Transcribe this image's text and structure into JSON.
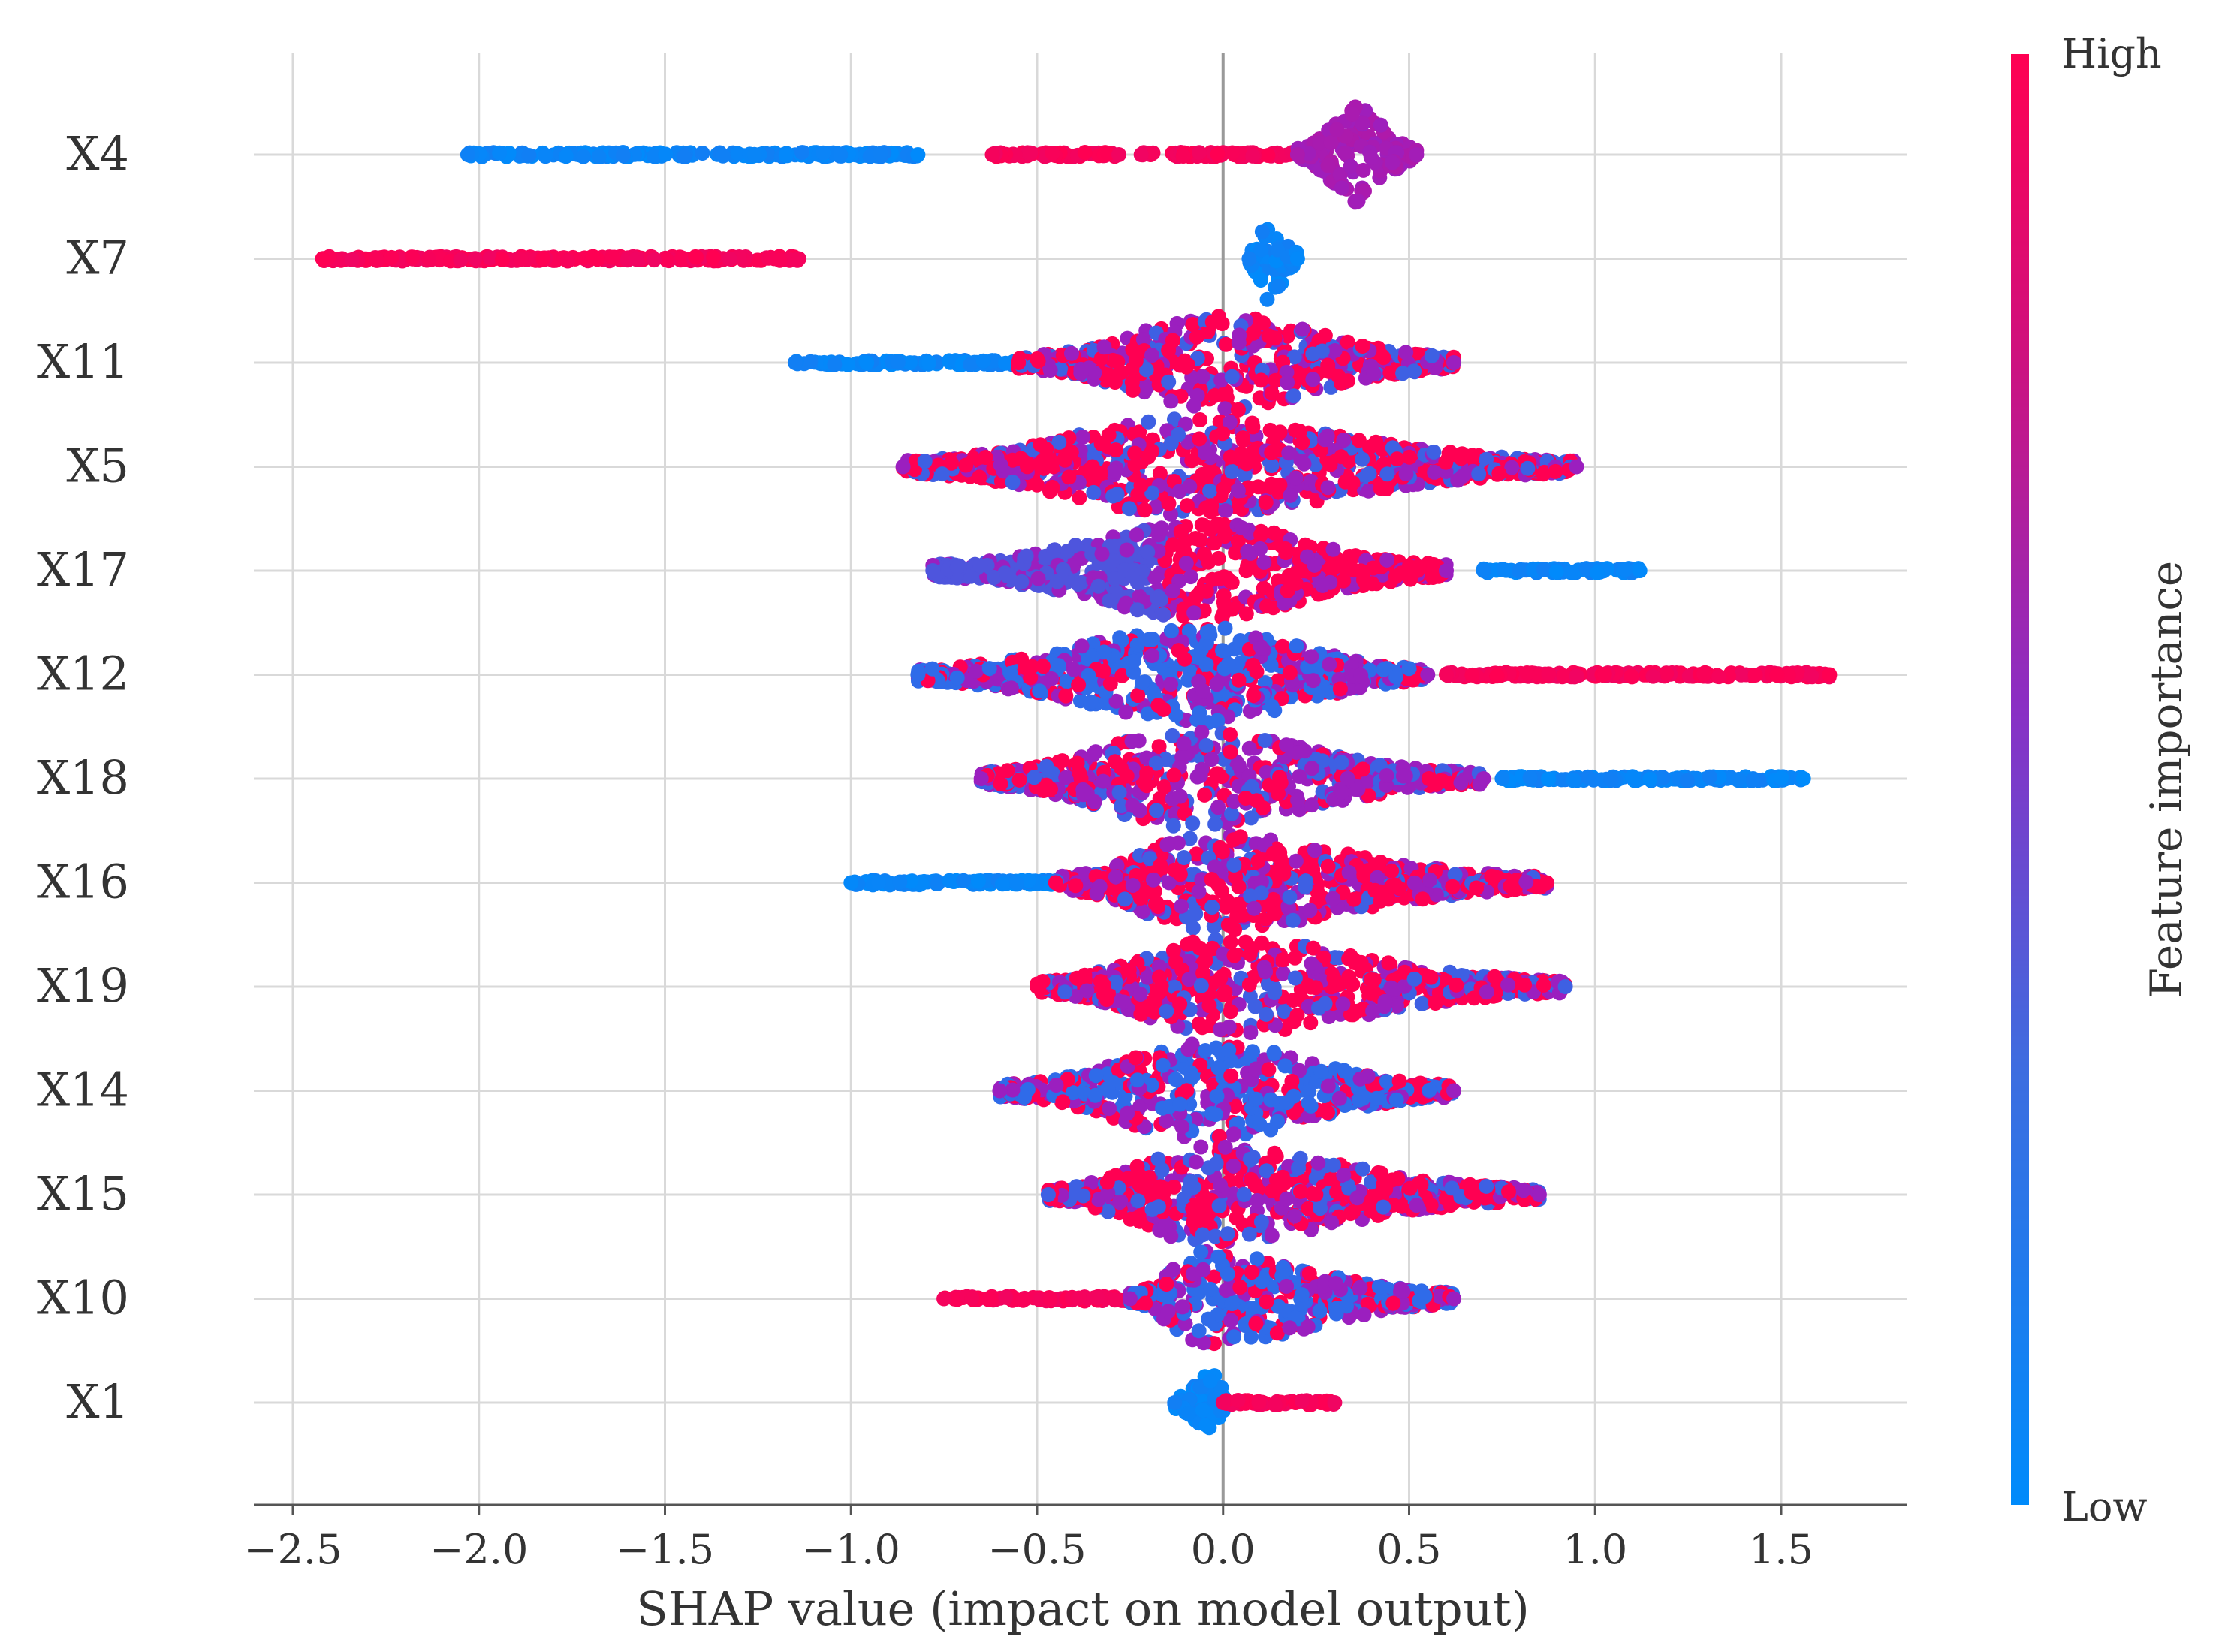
{
  "chart_data": {
    "type": "scatter",
    "subtype": "shap-beeswarm-summary",
    "title": "",
    "xlabel": "SHAP value (impact on model output)",
    "ylabel": "",
    "xlim": [
      -2.6,
      1.85
    ],
    "xticks": [
      -2.5,
      -2.0,
      -1.5,
      -1.0,
      -0.5,
      0.0,
      0.5,
      1.0,
      1.5
    ],
    "xtick_labels": [
      "−2.5",
      "−2.0",
      "−1.5",
      "−1.0",
      "−0.5",
      "0.0",
      "0.5",
      "1.0",
      "1.5"
    ],
    "grid": true,
    "features": [
      "X4",
      "X7",
      "X11",
      "X5",
      "X17",
      "X12",
      "X18",
      "X16",
      "X19",
      "X14",
      "X15",
      "X10",
      "X1"
    ],
    "rows": [
      {
        "feature": "X4",
        "clusters": [
          {
            "from": -2.03,
            "to": -0.82,
            "color": "low",
            "width": 0.25
          },
          {
            "from": -0.62,
            "to": -0.28,
            "color": "high",
            "width": 0.2
          },
          {
            "from": -0.22,
            "to": 0.25,
            "color": "high",
            "width": 0.2
          },
          {
            "from": 0.2,
            "to": 0.52,
            "color": "mid",
            "width": 1.0,
            "center": 0.36
          }
        ]
      },
      {
        "feature": "X7",
        "clusters": [
          {
            "from": -2.42,
            "to": -1.14,
            "color": "high",
            "width": 0.25
          },
          {
            "from": 0.07,
            "to": 0.2,
            "color": "low",
            "width": 0.9,
            "center": 0.12
          }
        ]
      },
      {
        "feature": "X11",
        "clusters": [
          {
            "from": -1.15,
            "to": -0.4,
            "color": "low",
            "width": 0.3
          },
          {
            "from": -0.55,
            "to": 0.62,
            "color": "mix-high",
            "width": 1.0,
            "center": 0.0
          }
        ]
      },
      {
        "feature": "X5",
        "clusters": [
          {
            "from": -0.86,
            "to": 0.95,
            "color": "mix-high",
            "width": 1.0,
            "center": -0.1
          }
        ]
      },
      {
        "feature": "X17",
        "clusters": [
          {
            "from": -0.78,
            "to": 0.6,
            "color": "mix-low-high",
            "width": 1.0,
            "center": -0.05
          },
          {
            "from": 0.7,
            "to": 1.12,
            "color": "low",
            "width": 0.2
          }
        ]
      },
      {
        "feature": "X12",
        "clusters": [
          {
            "from": -0.82,
            "to": 0.55,
            "color": "mix-low",
            "width": 1.0,
            "center": -0.05
          },
          {
            "from": 0.6,
            "to": 1.63,
            "color": "high",
            "width": 0.2
          }
        ]
      },
      {
        "feature": "X18",
        "clusters": [
          {
            "from": -0.65,
            "to": 0.7,
            "color": "mix-mid",
            "width": 1.0,
            "center": -0.1
          },
          {
            "from": 0.75,
            "to": 1.56,
            "color": "low",
            "width": 0.2
          }
        ]
      },
      {
        "feature": "X16",
        "clusters": [
          {
            "from": -1.0,
            "to": -0.3,
            "color": "low",
            "width": 0.25
          },
          {
            "from": -0.45,
            "to": 0.87,
            "color": "mix-high",
            "width": 1.0,
            "center": -0.05
          }
        ]
      },
      {
        "feature": "X19",
        "clusters": [
          {
            "from": -0.5,
            "to": 0.92,
            "color": "mix-high",
            "width": 1.0,
            "center": 0.0
          }
        ]
      },
      {
        "feature": "X14",
        "clusters": [
          {
            "from": -0.6,
            "to": 0.62,
            "color": "mix-low",
            "width": 1.0,
            "center": -0.05
          }
        ]
      },
      {
        "feature": "X15",
        "clusters": [
          {
            "from": -0.47,
            "to": 0.85,
            "color": "mix-high",
            "width": 1.0,
            "center": -0.05
          }
        ]
      },
      {
        "feature": "X10",
        "clusters": [
          {
            "from": -0.75,
            "to": -0.2,
            "color": "high",
            "width": 0.3
          },
          {
            "from": -0.25,
            "to": 0.62,
            "color": "mix-low",
            "width": 1.0,
            "center": -0.05
          }
        ]
      },
      {
        "feature": "X1",
        "clusters": [
          {
            "from": -0.13,
            "to": 0.01,
            "color": "low",
            "width": 0.7,
            "center": -0.02
          },
          {
            "from": 0.0,
            "to": 0.3,
            "color": "high",
            "width": 0.3
          }
        ]
      }
    ],
    "colorbar": {
      "label": "Feature importance",
      "high_label": "High",
      "low_label": "Low",
      "high_color": "#ff0052",
      "low_color": "#008bfb",
      "mid_color": "#9b1fbf"
    }
  }
}
